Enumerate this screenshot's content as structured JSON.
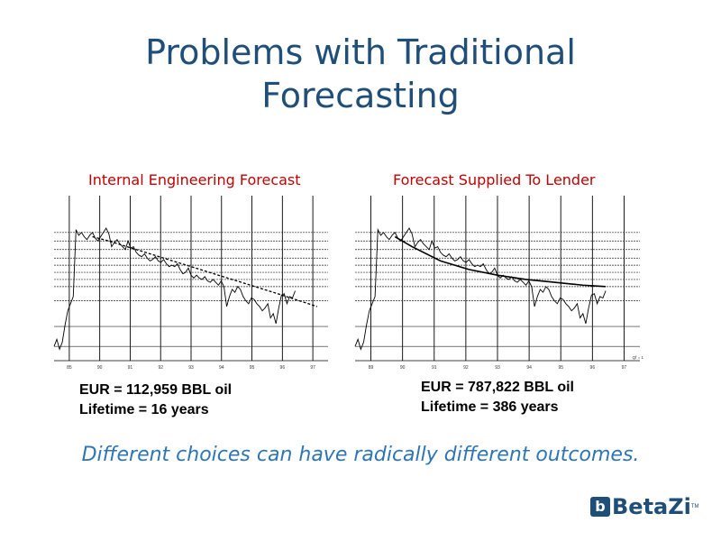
{
  "slide": {
    "title_line1": "Problems with Traditional",
    "title_line2": "Forecasting",
    "subtitle": "Different choices can have radically different outcomes."
  },
  "left": {
    "chart_title": "Internal Engineering Forecast",
    "eur": "EUR = 112,959 BBL oil",
    "lifetime": "Lifetime = 16 years"
  },
  "right": {
    "chart_title": "Forecast Supplied To Lender",
    "eur": "EUR = 787,822 BBL oil",
    "lifetime": "Lifetime = 386 years",
    "corner_label": "Qf = 1"
  },
  "logo": {
    "mark": "b",
    "text": "BetaZi",
    "tm": "TM"
  },
  "chart_data": [
    {
      "type": "line",
      "title": "Internal Engineering Forecast",
      "xlim": [
        0,
        100
      ],
      "ylim": [
        0,
        100
      ],
      "tick_labels": [
        "85",
        "90",
        "91",
        "92",
        "93",
        "94",
        "95",
        "96",
        "97"
      ],
      "series": [
        {
          "style": "solid",
          "x": [
            0,
            1,
            2,
            3,
            4,
            5,
            6,
            7,
            8,
            9,
            10,
            11,
            12,
            13,
            14,
            15,
            16,
            17,
            18,
            19,
            20,
            21,
            22,
            23,
            24,
            25,
            26,
            27,
            28,
            29,
            30,
            31,
            32,
            33,
            34,
            35,
            36,
            37,
            38,
            39,
            40,
            41,
            42,
            43,
            44,
            45,
            46,
            47,
            48,
            49,
            50,
            51,
            52,
            53,
            54,
            55,
            56,
            57,
            58,
            59,
            60,
            61,
            62,
            63,
            64,
            65,
            66,
            67,
            68,
            69,
            70,
            71,
            72,
            73,
            74,
            75,
            76,
            77,
            78,
            79,
            80,
            81,
            82,
            83,
            84,
            85,
            86,
            87,
            88
          ],
          "y": [
            10,
            15,
            8,
            13,
            25,
            35,
            40,
            45,
            92,
            88,
            90,
            87,
            85,
            88,
            90,
            86,
            84,
            87,
            90,
            93,
            89,
            80,
            83,
            85,
            82,
            80,
            78,
            84,
            79,
            80,
            76,
            74,
            73,
            75,
            72,
            70,
            71,
            73,
            70,
            69,
            71,
            68,
            66,
            67,
            66,
            68,
            64,
            61,
            62,
            65,
            60,
            58,
            60,
            58,
            57,
            59,
            56,
            55,
            57,
            55,
            53,
            56,
            52,
            38,
            45,
            50,
            48,
            52,
            50,
            45,
            42,
            40,
            44,
            43,
            40,
            38,
            35,
            37,
            40,
            30,
            33,
            26,
            37,
            46,
            47,
            40,
            45,
            44,
            49
          ]
        },
        {
          "style": "dashed",
          "x": [
            14,
            20,
            30,
            40,
            50,
            60,
            70,
            80,
            88,
            96
          ],
          "y": [
            87,
            84,
            78,
            72,
            66,
            60,
            54,
            48,
            43,
            38
          ]
        }
      ]
    },
    {
      "type": "line",
      "title": "Forecast Supplied To Lender",
      "xlim": [
        0,
        100
      ],
      "ylim": [
        0,
        100
      ],
      "tick_labels": [
        "89",
        "90",
        "91",
        "92",
        "93",
        "94",
        "95",
        "96",
        "97"
      ],
      "series": [
        {
          "style": "solid",
          "x": [
            0,
            1,
            2,
            3,
            4,
            5,
            6,
            7,
            8,
            9,
            10,
            11,
            12,
            13,
            14,
            15,
            16,
            17,
            18,
            19,
            20,
            21,
            22,
            23,
            24,
            25,
            26,
            27,
            28,
            29,
            30,
            31,
            32,
            33,
            34,
            35,
            36,
            37,
            38,
            39,
            40,
            41,
            42,
            43,
            44,
            45,
            46,
            47,
            48,
            49,
            50,
            51,
            52,
            53,
            54,
            55,
            56,
            57,
            58,
            59,
            60,
            61,
            62,
            63,
            64,
            65,
            66,
            67,
            68,
            69,
            70,
            71,
            72,
            73,
            74,
            75,
            76,
            77,
            78,
            79,
            80,
            81,
            82,
            83,
            84,
            85,
            86,
            87,
            88
          ],
          "y": [
            10,
            15,
            8,
            13,
            25,
            35,
            40,
            45,
            92,
            88,
            90,
            87,
            85,
            88,
            90,
            86,
            84,
            87,
            90,
            93,
            89,
            80,
            83,
            85,
            82,
            80,
            78,
            84,
            79,
            80,
            76,
            74,
            73,
            75,
            72,
            70,
            71,
            73,
            70,
            69,
            71,
            68,
            66,
            67,
            66,
            68,
            64,
            61,
            62,
            65,
            60,
            58,
            60,
            58,
            57,
            59,
            56,
            55,
            57,
            55,
            53,
            56,
            52,
            38,
            45,
            50,
            48,
            52,
            50,
            45,
            42,
            40,
            44,
            43,
            40,
            38,
            35,
            37,
            40,
            30,
            33,
            26,
            37,
            46,
            47,
            40,
            45,
            44,
            49
          ]
        },
        {
          "style": "solid-bold",
          "x": [
            14,
            20,
            30,
            40,
            50,
            60,
            70,
            80,
            88
          ],
          "y": [
            87,
            80,
            70,
            64,
            60,
            57,
            55,
            53,
            52
          ]
        }
      ]
    }
  ]
}
